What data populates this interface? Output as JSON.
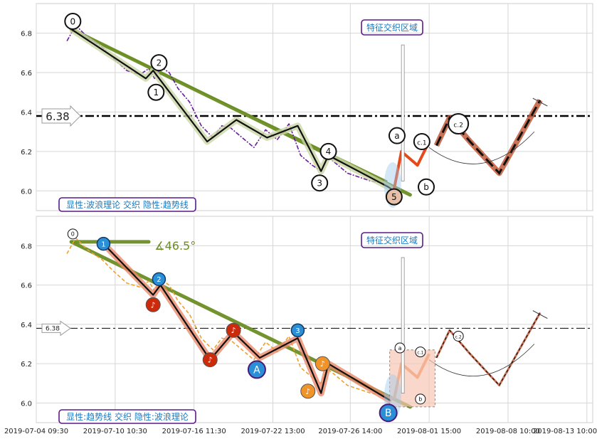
{
  "chart_data": [
    {
      "type": "line",
      "title": "",
      "ylim": [
        5.9,
        6.95
      ],
      "y_ticks": [
        "6.0",
        "6.2",
        "6.4",
        "6.6",
        "6.8"
      ],
      "y_tick_values": [
        6.0,
        6.2,
        6.4,
        6.6,
        6.8
      ],
      "price_line": {
        "value": 6.38,
        "label": "6.38",
        "style": "dash-dot"
      },
      "annotation_box": "特征交织区域",
      "caption": "显性:波浪理论 交织 隐性:趋势线",
      "wave_labels": [
        {
          "text": "0",
          "x": 0.4,
          "y": 6.86
        },
        {
          "text": "1",
          "x": 6.1,
          "y": 6.5
        },
        {
          "text": "2",
          "x": 6.3,
          "y": 6.65
        },
        {
          "text": "3",
          "x": 17.3,
          "y": 6.04
        },
        {
          "text": "4",
          "x": 17.9,
          "y": 6.2
        },
        {
          "text": "5",
          "x": 22.4,
          "y": 5.97
        },
        {
          "text": "a",
          "x": 22.6,
          "y": 6.28
        },
        {
          "text": "c.1",
          "x": 24.3,
          "y": 6.25
        },
        {
          "text": "b",
          "x": 24.6,
          "y": 6.02
        },
        {
          "text": "c.2",
          "x": 26.8,
          "y": 6.34
        }
      ],
      "series": [
        {
          "values_x": [
            0,
            0.6,
            1.4,
            2.4,
            3.2,
            4.1,
            5.0,
            5.6,
            6.0,
            6.4,
            7.0,
            7.6,
            8.4,
            9.2,
            10.0,
            10.6,
            11.2,
            12.0,
            12.8,
            13.6,
            14.4,
            15.2,
            16.0,
            16.8,
            17.4,
            17.9,
            18.4,
            19.2,
            20.0,
            20.8,
            21.6,
            22.2
          ],
          "values_y": [
            6.76,
            6.84,
            6.78,
            6.73,
            6.67,
            6.61,
            6.59,
            6.62,
            6.57,
            6.63,
            6.6,
            6.52,
            6.45,
            6.33,
            6.27,
            6.33,
            6.32,
            6.27,
            6.22,
            6.31,
            6.26,
            6.34,
            6.18,
            6.13,
            6.1,
            6.17,
            6.14,
            6.09,
            6.07,
            6.05,
            6.04,
            6.01
          ],
          "color": "#6a1b9a",
          "style": "dash-dot"
        },
        {
          "values_x": [
            0.3,
            5.4,
            5.9,
            9.6,
            11.6,
            13.7,
            15.8,
            17.4,
            17.9,
            22.0,
            22.4
          ],
          "values_y": [
            6.82,
            6.57,
            6.61,
            6.25,
            6.36,
            6.27,
            6.33,
            6.1,
            6.18,
            6.02,
            6.0
          ],
          "color": "#111111",
          "style": "solid"
        },
        {
          "values_x": [
            22.4,
            22.9,
            24.0,
            24.8
          ],
          "values_y": [
            6.01,
            6.2,
            6.13,
            6.25
          ],
          "color": "#e64a19",
          "style": "solid"
        },
        {
          "values_x": [
            25.3,
            26.2,
            27.6,
            29.6,
            32.4
          ],
          "values_y": [
            6.23,
            6.37,
            6.25,
            6.09,
            6.46
          ],
          "color": "#c25a3a",
          "style": "dashed"
        }
      ],
      "trend_lines": [
        {
          "x": [
            0.3,
            23.5
          ],
          "y": [
            6.82,
            5.98
          ],
          "color": "#6b8e23"
        },
        {
          "x": [
            0.3,
            21.9
          ],
          "y": [
            6.82,
            6.05
          ],
          "color": "#6b8e23"
        }
      ]
    },
    {
      "type": "line",
      "title": "",
      "ylim": [
        5.9,
        6.95
      ],
      "y_ticks": [
        "6.0",
        "6.2",
        "6.4",
        "6.6",
        "6.8"
      ],
      "y_tick_values": [
        6.0,
        6.2,
        6.4,
        6.6,
        6.8
      ],
      "price_line": {
        "value": 6.38,
        "label": "6.38",
        "style": "dash-dot"
      },
      "annotation_box": "特征交织区域",
      "caption": "显性:趋势线 交织 隐性:波浪理论",
      "angle_label": "∡46.5°",
      "wave_labels": [
        {
          "text": "0",
          "x": 0.4,
          "y": 6.86
        },
        {
          "text": "1",
          "x": 2.5,
          "y": 6.81
        },
        {
          "text": "2",
          "x": 6.3,
          "y": 6.63
        },
        {
          "text": "3",
          "x": 15.8,
          "y": 6.37
        },
        {
          "text": "A",
          "x": 13.0,
          "y": 6.17
        },
        {
          "text": "B",
          "x": 22.0,
          "y": 5.95
        },
        {
          "text": "a",
          "x": 22.8,
          "y": 6.28
        },
        {
          "text": "c.1",
          "x": 24.2,
          "y": 6.26
        },
        {
          "text": "b",
          "x": 24.2,
          "y": 6.02
        },
        {
          "text": "c.2",
          "x": 26.8,
          "y": 6.34
        }
      ],
      "note_markers": [
        {
          "x": 5.9,
          "y": 6.5,
          "color": "#cc2a0a"
        },
        {
          "x": 9.8,
          "y": 6.22,
          "color": "#cc2a0a"
        },
        {
          "x": 11.4,
          "y": 6.37,
          "color": "#cc2a0a"
        },
        {
          "x": 16.5,
          "y": 6.06,
          "color": "#f0942a"
        },
        {
          "x": 17.5,
          "y": 6.2,
          "color": "#f0942a"
        }
      ],
      "date_ticks": [
        "2019-07-04 09:30",
        "2019-07-10 10:30",
        "2019-07-16 11:30",
        "2019-07-22 13:00",
        "2019-07-26 14:00",
        "2019-08-01 15:00",
        "2019-08-08 10:00",
        "2019-08-13 10:00"
      ],
      "date_tick_positions": [
        -2.1,
        3.3,
        8.7,
        14.1,
        19.4,
        24.8,
        30.2,
        35.6
      ],
      "series": [
        {
          "values_x": [
            0,
            0.6,
            1.4,
            2.4,
            3.2,
            4.1,
            5.0,
            5.6,
            6.0,
            6.4,
            7.0,
            7.6,
            8.4,
            9.2,
            10.0,
            10.6,
            11.2,
            12.0,
            12.8,
            13.6,
            14.4,
            15.2,
            16.0,
            16.8,
            17.4,
            17.9,
            18.4,
            19.2,
            20.0,
            20.8,
            21.6,
            22.2
          ],
          "values_y": [
            6.76,
            6.84,
            6.78,
            6.73,
            6.67,
            6.61,
            6.59,
            6.62,
            6.57,
            6.63,
            6.6,
            6.52,
            6.45,
            6.33,
            6.27,
            6.33,
            6.32,
            6.27,
            6.22,
            6.31,
            6.26,
            6.34,
            6.18,
            6.13,
            6.1,
            6.17,
            6.14,
            6.09,
            6.07,
            6.05,
            6.04,
            6.01
          ],
          "color": "#f0a030",
          "style": "dashed"
        },
        {
          "values_x": [
            2.5,
            5.9,
            6.4,
            9.8,
            11.4,
            13.2,
            15.8,
            17.4,
            17.9,
            22.2
          ],
          "values_y": [
            6.81,
            6.55,
            6.6,
            6.22,
            6.36,
            6.23,
            6.33,
            6.05,
            6.2,
            6.01
          ],
          "color": "#111111",
          "style": "solid"
        },
        {
          "values_x": [
            22.4,
            22.9,
            24.0,
            24.8
          ],
          "values_y": [
            6.02,
            6.2,
            6.13,
            6.25
          ],
          "color": "#f07a3a",
          "style": "solid"
        },
        {
          "values_x": [
            25.3,
            26.2,
            27.6,
            29.6,
            32.4
          ],
          "values_y": [
            6.23,
            6.37,
            6.25,
            6.09,
            6.46
          ],
          "color": "#c25a3a",
          "style": "dashed"
        }
      ],
      "trend_lines": [
        {
          "x": [
            0.3,
            23.5
          ],
          "y": [
            6.82,
            5.98
          ],
          "color": "#6b8e23"
        },
        {
          "x": [
            0.3,
            5.6
          ],
          "y": [
            6.82,
            6.82
          ],
          "color": "#6b8e23"
        }
      ]
    }
  ]
}
